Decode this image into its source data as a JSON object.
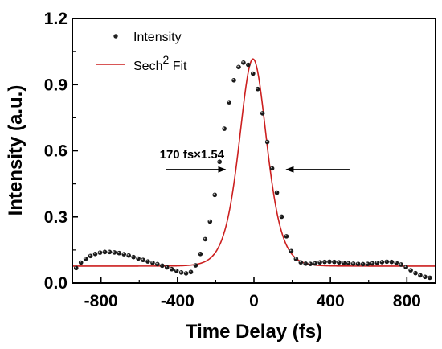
{
  "chart_data": {
    "type": "scatter",
    "title": "",
    "xlabel": "Time Delay (fs)",
    "ylabel": "Intensity (a.u.)",
    "xlim": [
      -950,
      950
    ],
    "ylim": [
      0,
      1.2
    ],
    "xticks": [
      -800,
      -400,
      0,
      400,
      800
    ],
    "xtick_labels": [
      "-800",
      "-400",
      "0",
      "400",
      "800"
    ],
    "yticks": [
      0.0,
      0.3,
      0.6,
      0.9,
      1.2
    ],
    "ytick_labels": [
      "0.0",
      "0.3",
      "0.6",
      "0.9",
      "1.2"
    ],
    "grid": false,
    "legend_position": "top-left",
    "series": [
      {
        "name": "Intensity",
        "kind": "scatter",
        "color": "#222222",
        "x": [
          -930,
          -905,
          -880,
          -855,
          -830,
          -805,
          -780,
          -755,
          -730,
          -705,
          -680,
          -655,
          -630,
          -605,
          -580,
          -555,
          -530,
          -505,
          -480,
          -455,
          -430,
          -405,
          -380,
          -355,
          -330,
          -305,
          -280,
          -255,
          -230,
          -205,
          -180,
          -155,
          -130,
          -105,
          -80,
          -55,
          -30,
          -5,
          20,
          45,
          70,
          95,
          120,
          145,
          170,
          195,
          220,
          245,
          270,
          295,
          320,
          345,
          370,
          395,
          420,
          445,
          470,
          495,
          520,
          545,
          570,
          595,
          620,
          645,
          670,
          695,
          720,
          745,
          770,
          795,
          820,
          845,
          870,
          895,
          920
        ],
        "y": [
          0.068,
          0.093,
          0.11,
          0.123,
          0.132,
          0.138,
          0.141,
          0.141,
          0.139,
          0.136,
          0.131,
          0.125,
          0.118,
          0.111,
          0.105,
          0.098,
          0.092,
          0.086,
          0.079,
          0.071,
          0.063,
          0.056,
          0.048,
          0.044,
          0.05,
          0.08,
          0.132,
          0.199,
          0.279,
          0.4,
          0.55,
          0.7,
          0.82,
          0.92,
          0.98,
          1.0,
          0.99,
          0.95,
          0.88,
          0.77,
          0.64,
          0.52,
          0.41,
          0.301,
          0.212,
          0.145,
          0.11,
          0.094,
          0.088,
          0.087,
          0.089,
          0.094,
          0.096,
          0.097,
          0.096,
          0.094,
          0.092,
          0.09,
          0.088,
          0.087,
          0.086,
          0.087,
          0.089,
          0.092,
          0.095,
          0.097,
          0.096,
          0.092,
          0.084,
          0.072,
          0.058,
          0.045,
          0.035,
          0.028,
          0.024
        ]
      },
      {
        "name": "Sech2 Fit",
        "kind": "line",
        "color": "#cc1f1f",
        "model": "sech2",
        "baseline": 0.077,
        "amplitude": 0.94,
        "center": -5,
        "tau": 96.5,
        "x_range": [
          -950,
          950
        ]
      }
    ],
    "legend": {
      "entries": [
        {
          "label": "Intensity",
          "marker": "dot"
        },
        {
          "label": "Sech",
          "superscript": "2",
          "suffix": " Fit",
          "marker": "line"
        }
      ]
    },
    "annotations": [
      {
        "text": "170 fs×1.54",
        "arrows": [
          {
            "from_x": -460,
            "to_x": -150,
            "y": 0.515
          },
          {
            "from_x": 500,
            "to_x": 170,
            "y": 0.515
          }
        ]
      }
    ]
  }
}
